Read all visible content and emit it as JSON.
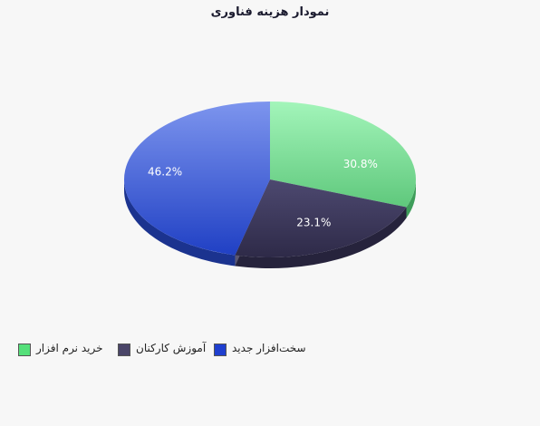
{
  "chart_data": {
    "type": "pie",
    "title": "نمودار هزینه فناوری",
    "slices": [
      {
        "name": "خرید نرم افزار",
        "value": 30.8,
        "label": "30.8%",
        "color": "#55cc77"
      },
      {
        "name": "آموزش کارکنان",
        "value": 23.1,
        "label": "23.1%",
        "color": "#3f3b5e"
      },
      {
        "name": "سخت‌افزار جدید",
        "value": 46.2,
        "label": "46.2%",
        "color": "#2a4fcf"
      }
    ],
    "legend_position": "bottom",
    "style": "3d"
  }
}
